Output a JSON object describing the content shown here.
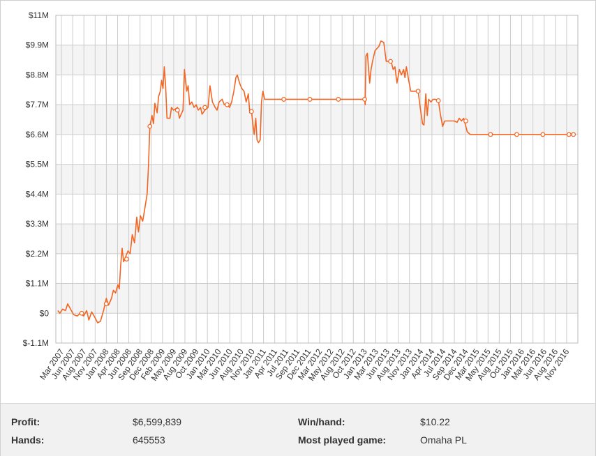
{
  "colors": {
    "line": "#f26522",
    "grid": "#cccccc",
    "band": "#f4f4f4",
    "panel": "#f1f1f1"
  },
  "chart_data": {
    "type": "line",
    "title": "",
    "xlabel": "",
    "ylabel": "",
    "ylim": [
      -1.1,
      11
    ],
    "y_ticks": [
      "$11M",
      "$9.9M",
      "$8.8M",
      "$7.7M",
      "$6.6M",
      "$5.5M",
      "$4.4M",
      "$3.3M",
      "$2.2M",
      "$1.1M",
      "$0",
      "$-1.1M"
    ],
    "y_tick_values": [
      11,
      9.9,
      8.8,
      7.7,
      6.6,
      5.5,
      4.4,
      3.3,
      2.2,
      1.1,
      0,
      -1.1
    ],
    "x_range": [
      "2007-02",
      "2017-02"
    ],
    "x_ticks": [
      "Mar 2007",
      "Jun 2007",
      "Aug 2007",
      "Nov 2007",
      "Jan 2008",
      "Apr 2008",
      "Jun 2008",
      "Sep 2008",
      "Dec 2008",
      "Feb 2009",
      "May 2009",
      "Aug 2009",
      "Oct 2009",
      "Jan 2010",
      "Mar 2010",
      "Jun 2010",
      "Aug 2010",
      "Nov 2010",
      "Jan 2011",
      "Apr 2011",
      "Jul 2011",
      "Sep 2011",
      "Dec 2011",
      "Mar 2012",
      "May 2012",
      "Aug 2012",
      "Oct 2012",
      "Jan 2013",
      "Mar 2013",
      "Jun 2013",
      "Aug 2013",
      "Nov 2013",
      "Jan 2014",
      "Apr 2014",
      "Jul 2014",
      "Sep 2014",
      "Dec 2014",
      "Mar 2015",
      "May 2015",
      "Aug 2015",
      "Oct 2015",
      "Jan 2016",
      "Mar 2016",
      "Jun 2016",
      "Aug 2016",
      "Nov 2016"
    ],
    "series": [
      {
        "values_unit": "$M",
        "points": [
          [
            "2007-02-15",
            0.1
          ],
          [
            "2007-03-01",
            0.0
          ],
          [
            "2007-03-20",
            0.15
          ],
          [
            "2007-04-10",
            0.1
          ],
          [
            "2007-04-25",
            0.35
          ],
          [
            "2007-05-15",
            0.15
          ],
          [
            "2007-06-05",
            -0.05
          ],
          [
            "2007-07-01",
            -0.1
          ],
          [
            "2007-07-20",
            0.0
          ],
          [
            "2007-08-15",
            -0.1
          ],
          [
            "2007-09-05",
            0.1
          ],
          [
            "2007-09-20",
            -0.25
          ],
          [
            "2007-10-10",
            0.05
          ],
          [
            "2007-11-01",
            -0.15
          ],
          [
            "2007-11-20",
            -0.35
          ],
          [
            "2007-12-10",
            -0.3
          ],
          [
            "2008-01-01",
            0.1
          ],
          [
            "2008-01-20",
            0.55
          ],
          [
            "2008-02-05",
            0.3
          ],
          [
            "2008-02-25",
            0.55
          ],
          [
            "2008-03-10",
            0.85
          ],
          [
            "2008-03-25",
            0.75
          ],
          [
            "2008-04-10",
            1.05
          ],
          [
            "2008-04-20",
            0.9
          ],
          [
            "2008-04-30",
            1.8
          ],
          [
            "2008-05-10",
            2.4
          ],
          [
            "2008-05-20",
            1.9
          ],
          [
            "2008-06-05",
            2.1
          ],
          [
            "2008-06-20",
            2.3
          ],
          [
            "2008-07-05",
            2.2
          ],
          [
            "2008-07-20",
            2.9
          ],
          [
            "2008-08-05",
            2.6
          ],
          [
            "2008-08-20",
            3.55
          ],
          [
            "2008-09-01",
            3.0
          ],
          [
            "2008-09-15",
            3.6
          ],
          [
            "2008-10-01",
            3.4
          ],
          [
            "2008-10-15",
            3.85
          ],
          [
            "2008-11-01",
            4.4
          ],
          [
            "2008-11-10",
            5.4
          ],
          [
            "2008-11-20",
            6.9
          ],
          [
            "2008-12-05",
            7.3
          ],
          [
            "2008-12-15",
            7.0
          ],
          [
            "2008-12-25",
            7.75
          ],
          [
            "2009-01-10",
            7.4
          ],
          [
            "2009-01-20",
            8.0
          ],
          [
            "2009-02-01",
            8.2
          ],
          [
            "2009-02-10",
            8.6
          ],
          [
            "2009-02-20",
            8.3
          ],
          [
            "2009-03-01",
            9.1
          ],
          [
            "2009-03-10",
            8.4
          ],
          [
            "2009-03-20",
            7.2
          ],
          [
            "2009-04-10",
            7.2
          ],
          [
            "2009-04-20",
            7.6
          ],
          [
            "2009-05-05",
            7.5
          ],
          [
            "2009-06-01",
            7.6
          ],
          [
            "2009-06-15",
            7.2
          ],
          [
            "2009-07-10",
            7.5
          ],
          [
            "2009-07-20",
            9.0
          ],
          [
            "2009-08-05",
            8.2
          ],
          [
            "2009-08-15",
            8.4
          ],
          [
            "2009-08-25",
            7.7
          ],
          [
            "2009-09-10",
            7.8
          ],
          [
            "2009-09-25",
            7.6
          ],
          [
            "2009-10-10",
            7.7
          ],
          [
            "2009-10-25",
            7.5
          ],
          [
            "2009-11-10",
            7.6
          ],
          [
            "2009-11-20",
            7.35
          ],
          [
            "2009-12-10",
            7.5
          ],
          [
            "2010-01-01",
            7.6
          ],
          [
            "2010-01-15",
            8.4
          ],
          [
            "2010-02-01",
            7.8
          ],
          [
            "2010-02-20",
            7.6
          ],
          [
            "2010-03-05",
            7.5
          ],
          [
            "2010-03-20",
            7.8
          ],
          [
            "2010-04-10",
            7.9
          ],
          [
            "2010-04-25",
            7.7
          ],
          [
            "2010-05-15",
            7.7
          ],
          [
            "2010-06-01",
            7.6
          ],
          [
            "2010-06-15",
            7.8
          ],
          [
            "2010-07-01",
            8.2
          ],
          [
            "2010-07-15",
            8.7
          ],
          [
            "2010-07-25",
            8.8
          ],
          [
            "2010-08-10",
            8.5
          ],
          [
            "2010-08-25",
            8.3
          ],
          [
            "2010-09-10",
            8.2
          ],
          [
            "2010-09-25",
            7.8
          ],
          [
            "2010-10-10",
            8.1
          ],
          [
            "2010-10-20",
            7.4
          ],
          [
            "2010-11-01",
            7.5
          ],
          [
            "2010-11-10",
            7.0
          ],
          [
            "2010-11-20",
            6.6
          ],
          [
            "2010-12-01",
            7.2
          ],
          [
            "2010-12-10",
            6.4
          ],
          [
            "2010-12-20",
            6.3
          ],
          [
            "2011-01-01",
            6.4
          ],
          [
            "2011-01-10",
            7.8
          ],
          [
            "2011-01-20",
            8.2
          ],
          [
            "2011-02-01",
            7.9
          ],
          [
            "2011-04-01",
            7.9
          ],
          [
            "2011-07-01",
            7.9
          ],
          [
            "2011-12-01",
            7.9
          ],
          [
            "2012-06-01",
            7.9
          ],
          [
            "2012-12-01",
            7.9
          ],
          [
            "2013-01-01",
            7.9
          ],
          [
            "2013-01-05",
            7.7
          ],
          [
            "2013-01-10",
            9.5
          ],
          [
            "2013-01-20",
            9.6
          ],
          [
            "2013-02-05",
            8.5
          ],
          [
            "2013-02-15",
            9.0
          ],
          [
            "2013-02-25",
            9.3
          ],
          [
            "2013-03-15",
            9.7
          ],
          [
            "2013-04-10",
            9.85
          ],
          [
            "2013-04-25",
            10.05
          ],
          [
            "2013-05-15",
            10.0
          ],
          [
            "2013-06-01",
            9.3
          ],
          [
            "2013-06-20",
            9.3
          ],
          [
            "2013-07-10",
            9.2
          ],
          [
            "2013-07-20",
            9.0
          ],
          [
            "2013-08-01",
            9.1
          ],
          [
            "2013-08-15",
            8.5
          ],
          [
            "2013-09-01",
            9.0
          ],
          [
            "2013-09-15",
            8.8
          ],
          [
            "2013-10-01",
            9.0
          ],
          [
            "2013-10-10",
            8.7
          ],
          [
            "2013-10-20",
            9.1
          ],
          [
            "2013-11-05",
            8.6
          ],
          [
            "2013-11-20",
            8.2
          ],
          [
            "2013-12-20",
            8.2
          ],
          [
            "2014-01-10",
            8.2
          ],
          [
            "2014-01-25",
            7.6
          ],
          [
            "2014-02-10",
            7.0
          ],
          [
            "2014-02-20",
            6.95
          ],
          [
            "2014-03-05",
            8.1
          ],
          [
            "2014-03-15",
            7.3
          ],
          [
            "2014-03-25",
            7.9
          ],
          [
            "2014-04-10",
            7.8
          ],
          [
            "2014-04-25",
            7.9
          ],
          [
            "2014-05-10",
            7.9
          ],
          [
            "2014-06-01",
            7.85
          ],
          [
            "2014-06-15",
            7.35
          ],
          [
            "2014-07-01",
            6.9
          ],
          [
            "2014-07-15",
            7.1
          ],
          [
            "2014-08-15",
            7.1
          ],
          [
            "2014-09-20",
            7.1
          ],
          [
            "2014-10-10",
            7.05
          ],
          [
            "2014-10-25",
            7.2
          ],
          [
            "2014-11-10",
            7.1
          ],
          [
            "2014-11-25",
            7.2
          ],
          [
            "2014-12-10",
            6.9
          ],
          [
            "2014-12-20",
            6.7
          ],
          [
            "2015-01-10",
            6.6
          ],
          [
            "2015-02-15",
            6.6
          ],
          [
            "2015-06-01",
            6.6
          ],
          [
            "2015-12-01",
            6.6
          ],
          [
            "2016-06-01",
            6.6
          ],
          [
            "2016-12-01",
            6.6
          ],
          [
            "2017-01-01",
            6.6
          ]
        ],
        "markers": [
          [
            "2007-08-01",
            0.0
          ],
          [
            "2008-01-20",
            0.35
          ],
          [
            "2008-06-10",
            2.0
          ],
          [
            "2008-11-20",
            6.9
          ],
          [
            "2009-06-01",
            7.5
          ],
          [
            "2009-12-10",
            7.6
          ],
          [
            "2010-05-15",
            7.7
          ],
          [
            "2010-11-01",
            7.45
          ],
          [
            "2011-06-15",
            7.9
          ],
          [
            "2011-12-15",
            7.9
          ],
          [
            "2012-07-01",
            7.9
          ],
          [
            "2013-01-01",
            7.9
          ],
          [
            "2013-07-01",
            9.3
          ],
          [
            "2014-01-10",
            8.2
          ],
          [
            "2014-06-01",
            7.85
          ],
          [
            "2014-12-10",
            7.1
          ],
          [
            "2015-06-01",
            6.6
          ],
          [
            "2015-12-01",
            6.6
          ],
          [
            "2016-06-01",
            6.6
          ],
          [
            "2016-12-01",
            6.6
          ],
          [
            "2017-01-01",
            6.6
          ]
        ]
      }
    ]
  },
  "stats": {
    "profit_label": "Profit:",
    "profit_value": "$6,599,839",
    "hands_label": "Hands:",
    "hands_value": "645553",
    "winhand_label": "Win/hand:",
    "winhand_value": "$10.22",
    "game_label": "Most played game:",
    "game_value": "Omaha PL"
  }
}
